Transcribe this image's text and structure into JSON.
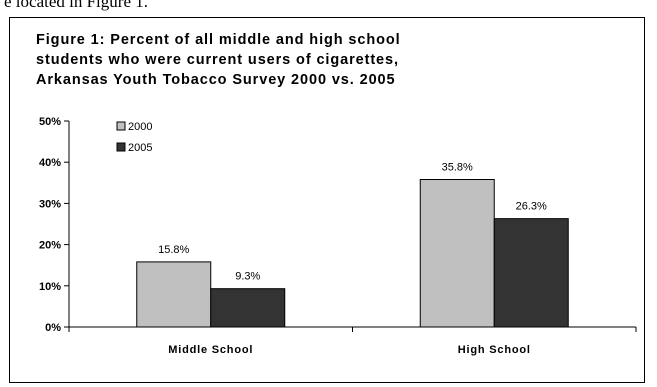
{
  "page": {
    "top_text": "e located in Figure 1."
  },
  "chart_data": {
    "type": "bar",
    "title_lines": [
      "Figure 1: Percent of all middle and high school",
      "students who were current users of cigarettes,",
      "Arkansas Youth Tobacco Survey 2000 vs. 2005"
    ],
    "categories": [
      "Middle School",
      "High School"
    ],
    "series": [
      {
        "name": "2000",
        "values": [
          15.8,
          35.8
        ],
        "labels": [
          "15.8%",
          "35.8%"
        ],
        "color": "#c0c0c0"
      },
      {
        "name": "2005",
        "values": [
          9.3,
          26.3
        ],
        "labels": [
          "9.3%",
          "26.3%"
        ],
        "color": "#333333"
      }
    ],
    "ylim": [
      0,
      50
    ],
    "yticks": [
      0,
      10,
      20,
      30,
      40,
      50
    ],
    "ytick_labels": [
      "0%",
      "10%",
      "20%",
      "30%",
      "40%",
      "50%"
    ],
    "grid": false,
    "legend_position": "top-left"
  }
}
